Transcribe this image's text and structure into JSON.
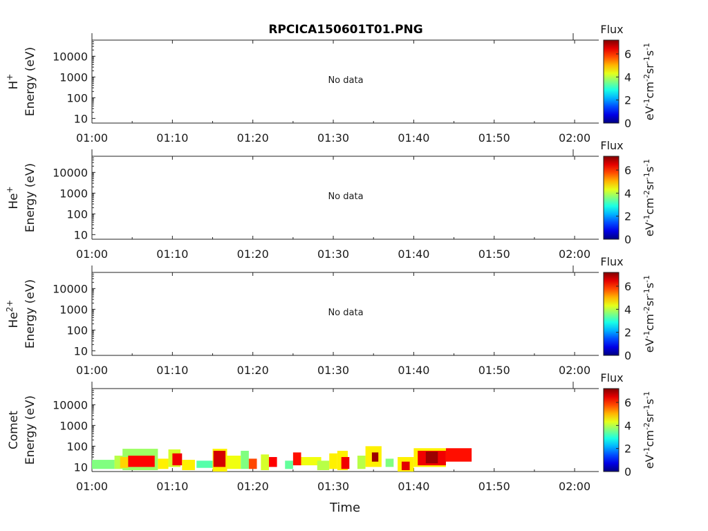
{
  "title": "RPCICA150601T01.PNG",
  "xlabel": "Time",
  "x_ticks": [
    "01:00",
    "01:10",
    "01:20",
    "01:30",
    "01:40",
    "01:50",
    "02:00"
  ],
  "y_ticks": [
    "10",
    "100",
    "1000",
    "10000"
  ],
  "no_data_text": "No data",
  "colorbar": {
    "title": "Flux",
    "ticks": [
      "0",
      "2",
      "4",
      "6"
    ],
    "unit_parts": [
      "eV",
      "-1",
      "cm",
      "-2",
      "sr",
      "-1",
      "s",
      "-1"
    ]
  },
  "panels": [
    {
      "species": "H",
      "charge": "+",
      "ylabel": "Energy (eV)",
      "has_data": false
    },
    {
      "species": "He",
      "charge": "+",
      "ylabel": "Energy (eV)",
      "has_data": false
    },
    {
      "species": "He",
      "charge": "2+",
      "ylabel": "Energy (eV)",
      "has_data": false
    },
    {
      "species": "Comet",
      "charge": "",
      "ylabel": "Energy (eV)",
      "has_data": true
    }
  ],
  "chart_data": {
    "type": "heatmap",
    "title": "RPCICA150601T01.PNG",
    "xlabel": "Time",
    "ylabel": "Energy (eV)",
    "x_range": [
      "01:00",
      "02:03"
    ],
    "y_range": [
      6,
      60000
    ],
    "y_scale": "log",
    "colorbar_range": [
      0,
      7.2
    ],
    "colorbar_label": "Flux",
    "colormap": "jet",
    "series": [
      {
        "name": "H+",
        "data": []
      },
      {
        "name": "He+",
        "data": []
      },
      {
        "name": "He2+",
        "data": []
      },
      {
        "name": "Comet",
        "data": [
          {
            "t0": 0.0,
            "t1": 2.8,
            "e_lo": 8,
            "e_hi": 22,
            "flux": 3.6
          },
          {
            "t0": 2.8,
            "t1": 4.0,
            "e_lo": 8,
            "e_hi": 35,
            "flux": 4.0
          },
          {
            "t0": 3.8,
            "t1": 8.2,
            "e_lo": 7,
            "e_hi": 75,
            "flux": 3.8
          },
          {
            "t0": 3.5,
            "t1": 4.5,
            "e_lo": 9,
            "e_hi": 30,
            "flux": 4.8
          },
          {
            "t0": 4.5,
            "t1": 7.8,
            "e_lo": 10,
            "e_hi": 35,
            "flux": 6.3
          },
          {
            "t0": 8.2,
            "t1": 9.5,
            "e_lo": 8,
            "e_hi": 25,
            "flux": 4.6
          },
          {
            "t0": 9.5,
            "t1": 11.0,
            "e_lo": 10,
            "e_hi": 70,
            "flux": 4.2
          },
          {
            "t0": 10.0,
            "t1": 11.2,
            "e_lo": 12,
            "e_hi": 45,
            "flux": 6.4
          },
          {
            "t0": 11.2,
            "t1": 12.8,
            "e_lo": 7,
            "e_hi": 22,
            "flux": 4.6
          },
          {
            "t0": 13.0,
            "t1": 15.0,
            "e_lo": 9,
            "e_hi": 20,
            "flux": 3.3
          },
          {
            "t0": 15.0,
            "t1": 16.8,
            "e_lo": 6,
            "e_hi": 75,
            "flux": 4.6
          },
          {
            "t0": 15.1,
            "t1": 16.6,
            "e_lo": 10,
            "e_hi": 60,
            "flux": 6.6
          },
          {
            "t0": 16.8,
            "t1": 18.5,
            "e_lo": 8,
            "e_hi": 35,
            "flux": 4.4
          },
          {
            "t0": 18.5,
            "t1": 19.5,
            "e_lo": 8,
            "e_hi": 60,
            "flux": 3.6
          },
          {
            "t0": 19.5,
            "t1": 20.5,
            "e_lo": 8,
            "e_hi": 25,
            "flux": 5.8
          },
          {
            "t0": 21.0,
            "t1": 22.0,
            "e_lo": 7,
            "e_hi": 40,
            "flux": 4.2
          },
          {
            "t0": 22.0,
            "t1": 23.0,
            "e_lo": 10,
            "e_hi": 30,
            "flux": 6.3
          },
          {
            "t0": 24.0,
            "t1": 25.0,
            "e_lo": 8,
            "e_hi": 20,
            "flux": 3.4
          },
          {
            "t0": 25.0,
            "t1": 26.0,
            "e_lo": 12,
            "e_hi": 50,
            "flux": 6.2
          },
          {
            "t0": 26.0,
            "t1": 28.5,
            "e_lo": 12,
            "e_hi": 30,
            "flux": 4.4
          },
          {
            "t0": 28.0,
            "t1": 29.5,
            "e_lo": 7,
            "e_hi": 20,
            "flux": 4.0
          },
          {
            "t0": 29.5,
            "t1": 30.5,
            "e_lo": 8,
            "e_hi": 45,
            "flux": 4.6
          },
          {
            "t0": 30.5,
            "t1": 31.8,
            "e_lo": 7,
            "e_hi": 60,
            "flux": 4.6
          },
          {
            "t0": 31.0,
            "t1": 32.0,
            "e_lo": 8,
            "e_hi": 30,
            "flux": 6.4
          },
          {
            "t0": 33.0,
            "t1": 34.0,
            "e_lo": 8,
            "e_hi": 35,
            "flux": 4.0
          },
          {
            "t0": 34.0,
            "t1": 36.0,
            "e_lo": 10,
            "e_hi": 100,
            "flux": 4.6
          },
          {
            "t0": 34.8,
            "t1": 35.6,
            "e_lo": 18,
            "e_hi": 50,
            "flux": 7.0
          },
          {
            "t0": 36.5,
            "t1": 37.5,
            "e_lo": 10,
            "e_hi": 25,
            "flux": 3.6
          },
          {
            "t0": 38.0,
            "t1": 40.0,
            "e_lo": 6,
            "e_hi": 30,
            "flux": 4.6
          },
          {
            "t0": 38.5,
            "t1": 39.5,
            "e_lo": 7,
            "e_hi": 18,
            "flux": 6.5
          },
          {
            "t0": 40.0,
            "t1": 44.0,
            "e_lo": 10,
            "e_hi": 80,
            "flux": 4.6
          },
          {
            "t0": 40.5,
            "t1": 44.0,
            "e_lo": 12,
            "e_hi": 60,
            "flux": 6.4
          },
          {
            "t0": 41.5,
            "t1": 43.0,
            "e_lo": 15,
            "e_hi": 55,
            "flux": 7.0
          },
          {
            "t0": 44.0,
            "t1": 47.2,
            "e_lo": 18,
            "e_hi": 80,
            "flux": 6.2
          }
        ]
      }
    ]
  }
}
